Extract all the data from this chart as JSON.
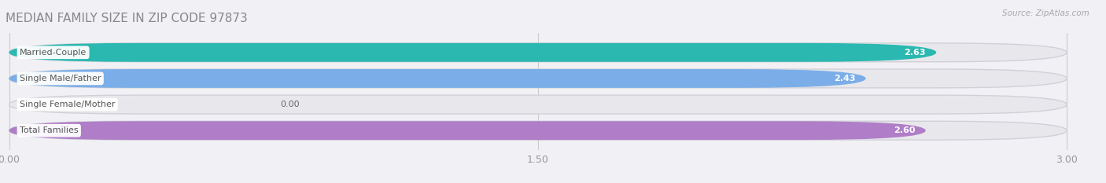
{
  "title": "MEDIAN FAMILY SIZE IN ZIP CODE 97873",
  "source": "Source: ZipAtlas.com",
  "categories": [
    "Married-Couple",
    "Single Male/Father",
    "Single Female/Mother",
    "Total Families"
  ],
  "values": [
    2.63,
    2.43,
    0.0,
    2.6
  ],
  "bar_colors": [
    "#2ab8b0",
    "#7baee8",
    "#f4a0b0",
    "#b07ec8"
  ],
  "track_color": "#e8e8ec",
  "track_border_color": "#d0d0d8",
  "label_bg": "#ffffff",
  "xlim": [
    0,
    3.0
  ],
  "xticks": [
    0.0,
    1.5,
    3.0
  ],
  "xtick_labels": [
    "0.00",
    "1.50",
    "3.00"
  ],
  "figsize": [
    14.06,
    2.33
  ],
  "dpi": 100,
  "bg_color": "#f0f0f5",
  "plot_bg": "#f0f0f5",
  "bar_height": 0.72,
  "value_label_color": "#ffffff",
  "title_color": "#888888",
  "source_color": "#aaaaaa",
  "grid_color": "#cccccc",
  "text_color": "#555555"
}
